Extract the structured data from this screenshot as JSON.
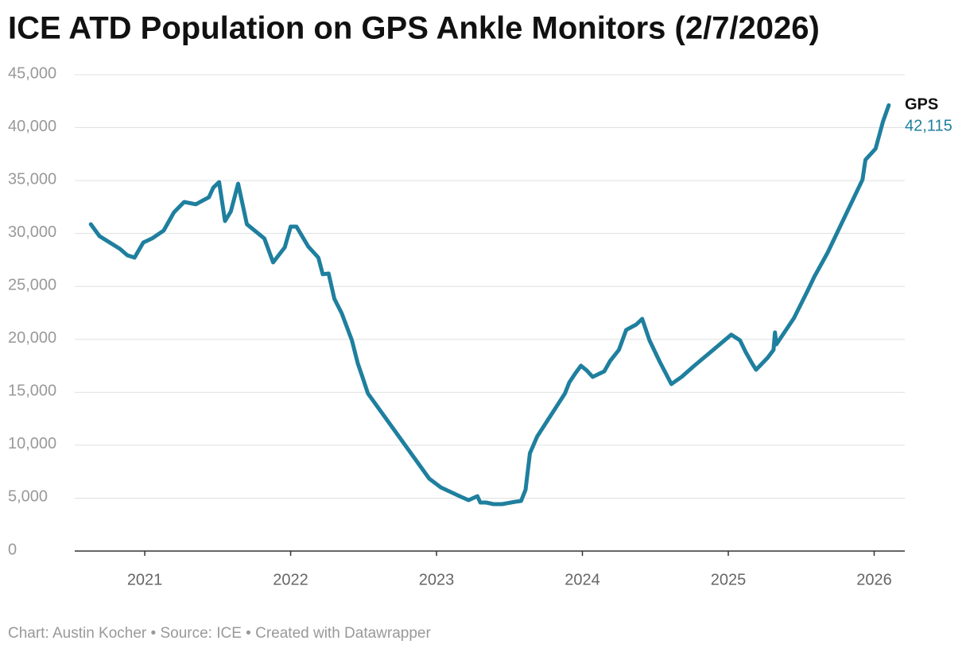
{
  "chart_data": {
    "type": "line",
    "title": "ICE ATD Population on GPS Ankle Monitors (2/7/2026)",
    "source": "Chart: Austin Kocher • Source: ICE • Created with Datawrapper",
    "x": [
      2020.63,
      2020.69,
      2020.83,
      2020.88,
      2020.93,
      2020.99,
      2021.05,
      2021.13,
      2021.2,
      2021.27,
      2021.35,
      2021.44,
      2021.47,
      2021.51,
      2021.55,
      2021.59,
      2021.64,
      2021.7,
      2021.82,
      2021.88,
      2021.96,
      2022.0,
      2022.04,
      2022.12,
      2022.19,
      2022.22,
      2022.26,
      2022.3,
      2022.35,
      2022.42,
      2022.46,
      2022.49,
      2022.53,
      2022.95,
      2023.03,
      2023.17,
      2023.22,
      2023.28,
      2023.3,
      2023.34,
      2023.39,
      2023.45,
      2023.54,
      2023.58,
      2023.61,
      2023.64,
      2023.69,
      2023.88,
      2023.91,
      2023.95,
      2023.99,
      2024.03,
      2024.07,
      2024.15,
      2024.19,
      2024.25,
      2024.3,
      2024.37,
      2024.41,
      2024.46,
      2024.53,
      2024.61,
      2024.68,
      2024.76,
      2025.02,
      2025.08,
      2025.12,
      2025.16,
      2025.19,
      2025.27,
      2025.31,
      2025.32,
      2025.33,
      2025.45,
      2025.54,
      2025.59,
      2025.68,
      2025.92,
      2025.94,
      2026.01,
      2026.06,
      2026.1
    ],
    "series": [
      {
        "name": "GPS",
        "color": "#1f7f9e",
        "values": [
          30880,
          29750,
          28550,
          27950,
          27720,
          29150,
          29530,
          30280,
          32000,
          32980,
          32760,
          33430,
          34340,
          34860,
          31180,
          32080,
          34710,
          30880,
          29530,
          27270,
          28700,
          30650,
          30650,
          28780,
          27720,
          26150,
          26220,
          23820,
          22460,
          19910,
          17730,
          16530,
          14880,
          6840,
          6010,
          5110,
          4810,
          5180,
          4580,
          4580,
          4430,
          4430,
          4660,
          4730,
          5790,
          9240,
          10820,
          14880,
          15930,
          16750,
          17510,
          17060,
          16450,
          16980,
          17960,
          19010,
          20890,
          21410,
          21940,
          19910,
          17880,
          15780,
          16450,
          17430,
          20440,
          19910,
          18780,
          17810,
          17130,
          18260,
          19010,
          20660,
          19530,
          22010,
          24490,
          25920,
          28170,
          35090,
          36960,
          38020,
          40570,
          42115
        ],
        "value_labels": [
          null,
          null,
          null,
          null,
          null,
          null,
          null,
          null,
          null,
          null,
          null,
          null,
          null,
          null,
          null,
          null,
          null,
          null,
          null,
          null,
          null,
          null,
          null,
          null,
          null,
          null,
          null,
          null,
          null,
          null,
          null,
          null,
          null,
          null,
          null,
          null,
          null,
          null,
          null,
          null,
          null,
          null,
          null,
          null,
          null,
          null,
          null,
          null,
          null,
          null,
          null,
          null,
          null,
          null,
          null,
          null,
          null,
          null,
          null,
          null,
          null,
          null,
          null,
          null,
          null,
          null,
          null,
          null,
          null,
          null,
          null,
          null,
          null,
          null,
          null,
          null,
          null,
          null,
          null,
          null,
          null,
          "42,115"
        ]
      }
    ],
    "xlim": [
      2020.52,
      2026.21
    ],
    "xticks": [
      2021,
      2022,
      2023,
      2024,
      2025,
      2026
    ],
    "ylim": [
      0,
      45000
    ],
    "yticks": [
      0,
      {
        "value": 5000,
        "label": "5,000"
      },
      {
        "value": 10000,
        "label": "10,000"
      },
      {
        "value": 15000,
        "label": "15,000"
      },
      {
        "value": 20000,
        "label": "20,000"
      },
      {
        "value": 25000,
        "label": "25,000"
      },
      {
        "value": 30000,
        "label": "30,000"
      },
      {
        "value": 35000,
        "label": "35,000"
      },
      {
        "value": 40000,
        "label": "40,000"
      },
      {
        "value": 45000,
        "label": "45,000"
      }
    ],
    "grid": true
  }
}
